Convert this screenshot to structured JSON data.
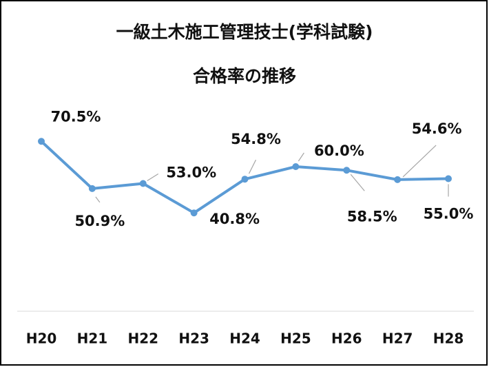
{
  "chart_data": {
    "type": "line",
    "title": "一級土木施工管理技士(学科試験)",
    "subtitle": "合格率の推移",
    "categories": [
      "H20",
      "H21",
      "H22",
      "H23",
      "H24",
      "H25",
      "H26",
      "H27",
      "H28"
    ],
    "series": [
      {
        "name": "合格率",
        "color": "#5b9bd5",
        "values": [
          70.5,
          50.9,
          53.0,
          40.8,
          54.8,
          60.0,
          58.5,
          54.6,
          55.0
        ],
        "value_labels": [
          "70.5%",
          "50.9%",
          "53.0%",
          "40.8%",
          "54.8%",
          "60.0%",
          "58.5%",
          "54.6%",
          "55.0%"
        ]
      }
    ],
    "ylim": [
      0,
      80
    ]
  }
}
